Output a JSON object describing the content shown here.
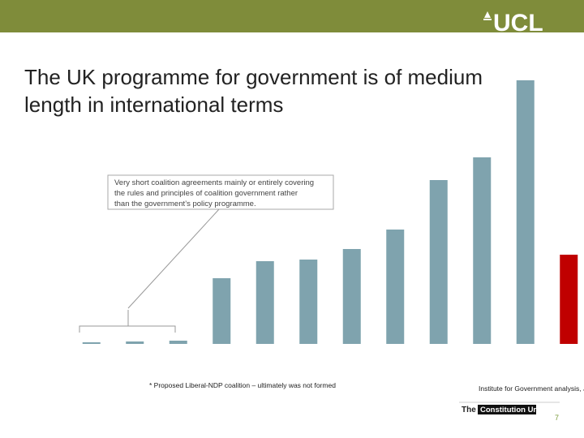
{
  "logo": "UCL",
  "footer": {
    "the": "The",
    "unit": "Constitution Unit",
    "page": "7"
  },
  "chart_data": {
    "type": "bar",
    "title_lines": [
      "The UK programme for government is of medium",
      "length in international terms"
    ],
    "annotation_lines": [
      "Very short coalition agreements mainly or entirely covering",
      "the rules and principles of coalition government rather",
      "than the government’s policy programme."
    ],
    "footnote": "* Proposed Liberal-NDP coalition – ultimately was not formed",
    "source": "Institute for Government analysis, Ja",
    "categories": [
      null,
      null,
      null,
      null,
      null,
      null,
      null,
      null,
      null,
      null,
      null,
      null
    ],
    "values": [
      2,
      3,
      4,
      81,
      102,
      104,
      117,
      141,
      202,
      230,
      325,
      110
    ],
    "colors": [
      "#7fa3ae",
      "#7fa3ae",
      "#7fa3ae",
      "#7fa3ae",
      "#7fa3ae",
      "#7fa3ae",
      "#7fa3ae",
      "#7fa3ae",
      "#7fa3ae",
      "#7fa3ae",
      "#7fa3ae",
      "#c00000"
    ],
    "ylim": [
      0,
      325
    ]
  }
}
